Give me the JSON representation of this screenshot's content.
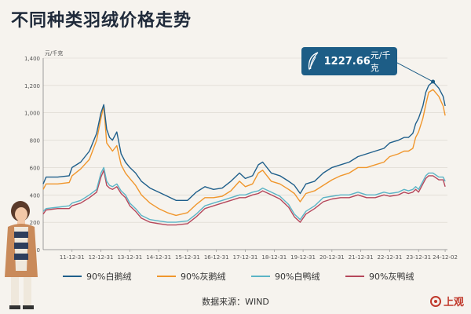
{
  "title": "不同种类羽绒价格走势",
  "callout": {
    "value": "1227.66",
    "unit": "元/千克"
  },
  "source_text": "数据来源：WIND",
  "logo_text": "上观",
  "chart_data": {
    "type": "line",
    "y_unit": "元/千克",
    "ylim": [
      0,
      1400
    ],
    "yticks": [
      0,
      200,
      400,
      600,
      800,
      1000,
      1200,
      1400
    ],
    "ytick_labels": [
      "0",
      "200",
      "400",
      "600",
      "800",
      "1,000",
      "1,200",
      "1,400"
    ],
    "xlim": [
      2011.0,
      2025.0
    ],
    "xtick_labels": [
      "11-12-31",
      "12-12-31",
      "13-12-31",
      "14-12-31",
      "15-12-31",
      "16-12-31",
      "17-12-31",
      "18-12-31",
      "19-12-31",
      "20-12-31",
      "21-12-31",
      "22-12-31",
      "23-12-31",
      "24-12-02"
    ],
    "xtick_positions": [
      2012.0,
      2013.0,
      2014.0,
      2015.0,
      2016.0,
      2017.0,
      2018.0,
      2019.0,
      2020.0,
      2021.0,
      2022.0,
      2023.0,
      2024.0,
      2024.92
    ],
    "grid": true,
    "legend_position": "bottom",
    "series": [
      {
        "name": "90%白鹅绒",
        "color": "#1f5f8b",
        "x": [
          2011.0,
          2011.1,
          2011.5,
          2011.9,
          2012.0,
          2012.3,
          2012.6,
          2012.85,
          2013.0,
          2013.1,
          2013.2,
          2013.3,
          2013.4,
          2013.55,
          2013.7,
          2013.85,
          2014.0,
          2014.2,
          2014.4,
          2014.7,
          2015.0,
          2015.3,
          2015.6,
          2016.0,
          2016.3,
          2016.6,
          2016.9,
          2017.2,
          2017.5,
          2017.8,
          2018.0,
          2018.25,
          2018.45,
          2018.6,
          2018.9,
          2019.2,
          2019.5,
          2019.7,
          2019.9,
          2020.1,
          2020.4,
          2020.7,
          2021.0,
          2021.3,
          2021.6,
          2021.9,
          2022.2,
          2022.5,
          2022.8,
          2023.0,
          2023.3,
          2023.5,
          2023.65,
          2023.8,
          2023.9,
          2024.0,
          2024.15,
          2024.25,
          2024.35,
          2024.5,
          2024.7,
          2024.85,
          2024.92
        ],
        "y": [
          480,
          530,
          530,
          540,
          600,
          640,
          720,
          850,
          1000,
          1060,
          880,
          820,
          800,
          860,
          700,
          640,
          600,
          560,
          500,
          450,
          420,
          390,
          360,
          360,
          420,
          460,
          440,
          450,
          500,
          560,
          520,
          540,
          620,
          640,
          560,
          540,
          500,
          470,
          410,
          480,
          500,
          560,
          600,
          620,
          640,
          680,
          700,
          720,
          740,
          780,
          800,
          820,
          820,
          850,
          920,
          960,
          1050,
          1150,
          1200,
          1227.66,
          1180,
          1120,
          1050
        ]
      },
      {
        "name": "90%灰鹅绒",
        "color": "#f0962c",
        "x": [
          2011.0,
          2011.1,
          2011.5,
          2011.9,
          2012.0,
          2012.3,
          2012.6,
          2012.85,
          2013.0,
          2013.1,
          2013.2,
          2013.3,
          2013.4,
          2013.55,
          2013.7,
          2013.85,
          2014.0,
          2014.2,
          2014.4,
          2014.7,
          2015.0,
          2015.3,
          2015.6,
          2016.0,
          2016.3,
          2016.6,
          2016.9,
          2017.2,
          2017.5,
          2017.8,
          2018.0,
          2018.25,
          2018.45,
          2018.6,
          2018.9,
          2019.2,
          2019.5,
          2019.7,
          2019.9,
          2020.1,
          2020.4,
          2020.7,
          2021.0,
          2021.3,
          2021.6,
          2021.9,
          2022.2,
          2022.5,
          2022.8,
          2023.0,
          2023.3,
          2023.5,
          2023.65,
          2023.8,
          2023.9,
          2024.0,
          2024.15,
          2024.25,
          2024.35,
          2024.5,
          2024.7,
          2024.85,
          2024.92
        ],
        "y": [
          440,
          480,
          480,
          490,
          540,
          590,
          660,
          800,
          960,
          1050,
          780,
          750,
          720,
          760,
          620,
          560,
          520,
          470,
          400,
          340,
          300,
          270,
          250,
          270,
          330,
          380,
          380,
          390,
          430,
          500,
          460,
          480,
          560,
          580,
          500,
          480,
          440,
          410,
          350,
          410,
          430,
          470,
          510,
          540,
          560,
          600,
          600,
          620,
          640,
          680,
          700,
          720,
          720,
          740,
          820,
          860,
          960,
          1060,
          1150,
          1170,
          1120,
          1050,
          980
        ]
      },
      {
        "name": "90%白鸭绒",
        "color": "#5bb4c6",
        "x": [
          2011.0,
          2011.1,
          2011.5,
          2011.9,
          2012.0,
          2012.3,
          2012.6,
          2012.85,
          2013.0,
          2013.1,
          2013.2,
          2013.3,
          2013.4,
          2013.55,
          2013.7,
          2013.85,
          2014.0,
          2014.2,
          2014.4,
          2014.7,
          2015.0,
          2015.3,
          2015.6,
          2016.0,
          2016.3,
          2016.6,
          2016.9,
          2017.2,
          2017.5,
          2017.8,
          2018.0,
          2018.25,
          2018.45,
          2018.6,
          2018.9,
          2019.2,
          2019.5,
          2019.7,
          2019.9,
          2020.1,
          2020.4,
          2020.7,
          2021.0,
          2021.3,
          2021.6,
          2021.9,
          2022.2,
          2022.5,
          2022.8,
          2023.0,
          2023.3,
          2023.5,
          2023.65,
          2023.8,
          2023.9,
          2024.0,
          2024.15,
          2024.25,
          2024.35,
          2024.5,
          2024.7,
          2024.85,
          2024.92
        ],
        "y": [
          280,
          300,
          310,
          320,
          340,
          360,
          400,
          440,
          560,
          600,
          500,
          470,
          460,
          480,
          430,
          400,
          340,
          300,
          250,
          220,
          210,
          200,
          200,
          210,
          260,
          320,
          340,
          360,
          380,
          400,
          400,
          420,
          430,
          450,
          420,
          390,
          330,
          260,
          220,
          280,
          320,
          380,
          390,
          400,
          400,
          420,
          400,
          400,
          420,
          410,
          420,
          440,
          430,
          440,
          460,
          440,
          500,
          540,
          560,
          560,
          530,
          530,
          500
        ]
      },
      {
        "name": "90%灰鸭绒",
        "color": "#b5475b",
        "x": [
          2011.0,
          2011.1,
          2011.5,
          2011.9,
          2012.0,
          2012.3,
          2012.6,
          2012.85,
          2013.0,
          2013.1,
          2013.2,
          2013.3,
          2013.4,
          2013.55,
          2013.7,
          2013.85,
          2014.0,
          2014.2,
          2014.4,
          2014.7,
          2015.0,
          2015.3,
          2015.6,
          2016.0,
          2016.3,
          2016.6,
          2016.9,
          2017.2,
          2017.5,
          2017.8,
          2018.0,
          2018.25,
          2018.45,
          2018.6,
          2018.9,
          2019.2,
          2019.5,
          2019.7,
          2019.9,
          2020.1,
          2020.4,
          2020.7,
          2021.0,
          2021.3,
          2021.6,
          2021.9,
          2022.2,
          2022.5,
          2022.8,
          2023.0,
          2023.3,
          2023.5,
          2023.65,
          2023.8,
          2023.9,
          2024.0,
          2024.15,
          2024.25,
          2024.35,
          2024.5,
          2024.7,
          2024.85,
          2024.92
        ],
        "y": [
          260,
          290,
          300,
          300,
          320,
          340,
          380,
          420,
          530,
          580,
          470,
          450,
          440,
          460,
          410,
          380,
          320,
          280,
          230,
          200,
          190,
          180,
          180,
          190,
          240,
          300,
          320,
          340,
          360,
          380,
          380,
          400,
          410,
          430,
          400,
          370,
          310,
          240,
          200,
          260,
          300,
          350,
          370,
          380,
          380,
          400,
          380,
          380,
          400,
          390,
          400,
          420,
          410,
          420,
          440,
          420,
          480,
          520,
          540,
          540,
          510,
          510,
          460
        ]
      }
    ]
  }
}
